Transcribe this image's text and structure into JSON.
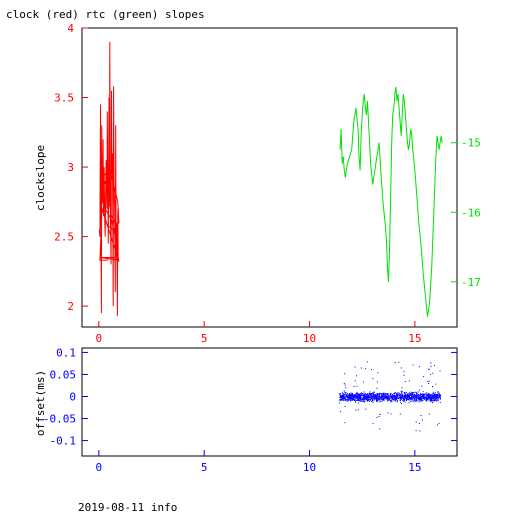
{
  "title": "clock (red) rtc (green) slopes",
  "footer": "2019-08-11 info",
  "colors": {
    "red": "#ff0000",
    "green": "#00e000",
    "blue": "#0000ff",
    "axis": "#000000"
  },
  "chart_data": [
    {
      "type": "line",
      "title": "clock (red) rtc (green) slopes",
      "ylabel": "clockslope",
      "xlim": [
        -0.8,
        17
      ],
      "ylim": [
        1.85,
        4.0
      ],
      "x_ticks": [
        0,
        5,
        10,
        15
      ],
      "y_ticks": [
        2,
        2.5,
        3,
        3.5,
        4
      ],
      "y_tick_labels": [
        "2",
        "2.5",
        "3",
        "3.5",
        "4"
      ],
      "y2lim": [
        -17.65,
        -13.35
      ],
      "y2_ticks": [
        -15,
        -16,
        -17
      ],
      "y2_tick_labels": [
        "-15",
        "-16",
        "-17"
      ],
      "series": [
        {
          "name": "clock",
          "color": "#ff0000",
          "x": [
            0.02,
            0.05,
            0.08,
            0.1,
            0.12,
            0.14,
            0.15,
            0.18,
            0.2,
            0.22,
            0.25,
            0.28,
            0.3,
            0.33,
            0.35,
            0.38,
            0.4,
            0.42,
            0.45,
            0.48,
            0.5,
            0.52,
            0.55,
            0.58,
            0.6,
            0.62,
            0.65,
            0.68,
            0.7,
            0.72,
            0.75,
            0.78,
            0.8,
            0.82,
            0.85,
            0.88,
            0.9,
            0.92,
            0.95,
            0.05,
            0.3,
            0.6,
            0.9,
            0.85,
            0.6,
            0.3,
            0.05,
            0.1,
            0.5,
            0.9,
            0.95,
            0.7,
            0.4,
            0.15,
            0.05,
            0.35,
            0.7,
            0.95,
            0.05,
            0.3,
            0.75,
            0.05
          ],
          "y": [
            2.55,
            2.5,
            3.45,
            2.6,
            1.95,
            3.3,
            2.8,
            2.75,
            3.2,
            2.65,
            3.0,
            2.6,
            2.5,
            2.9,
            3.05,
            2.7,
            3.4,
            2.95,
            2.45,
            3.5,
            2.75,
            3.9,
            2.65,
            2.3,
            3.55,
            2.95,
            3.1,
            2.0,
            3.58,
            2.9,
            2.7,
            2.1,
            3.3,
            2.35,
            2.6,
            1.93,
            2.7,
            2.35,
            2.32,
            2.75,
            2.9,
            2.65,
            2.55,
            2.45,
            2.62,
            2.7,
            2.8,
            2.9,
            3.0,
            2.75,
            2.6,
            2.55,
            2.58,
            2.7,
            2.33,
            2.33,
            2.35,
            2.33,
            2.35,
            2.35,
            2.35,
            2.35
          ]
        },
        {
          "name": "rtc",
          "axis": "y2",
          "color": "#00e000",
          "x": [
            11.45,
            11.5,
            11.55,
            11.6,
            11.65,
            11.7,
            11.8,
            11.9,
            12.0,
            12.05,
            12.1,
            12.2,
            12.3,
            12.35,
            12.4,
            12.45,
            12.5,
            12.55,
            12.6,
            12.65,
            12.7,
            12.75,
            12.8,
            12.85,
            12.9,
            13.0,
            13.1,
            13.2,
            13.3,
            13.4,
            13.5,
            13.6,
            13.65,
            13.7,
            13.75,
            13.8,
            13.85,
            13.9,
            13.95,
            14.0,
            14.05,
            14.1,
            14.15,
            14.2,
            14.25,
            14.3,
            14.35,
            14.4,
            14.45,
            14.5,
            14.55,
            14.6,
            14.65,
            14.7,
            14.75,
            14.8,
            14.85,
            14.9,
            15.0,
            15.1,
            15.2,
            15.3,
            15.4,
            15.5,
            15.6,
            15.7,
            15.8,
            15.9,
            16.0,
            16.05,
            16.1,
            16.15,
            16.2,
            16.25,
            16.3
          ],
          "y": [
            -15.1,
            -14.8,
            -15.3,
            -15.2,
            -15.4,
            -15.5,
            -15.3,
            -15.2,
            -15.1,
            -14.9,
            -14.7,
            -14.5,
            -14.8,
            -15.2,
            -15.4,
            -14.9,
            -14.6,
            -14.4,
            -14.3,
            -14.5,
            -14.6,
            -14.4,
            -14.7,
            -15.0,
            -15.3,
            -15.6,
            -15.4,
            -15.2,
            -15.0,
            -15.5,
            -15.9,
            -16.2,
            -16.4,
            -16.8,
            -17.0,
            -16.5,
            -15.8,
            -15.0,
            -14.6,
            -14.5,
            -14.3,
            -14.2,
            -14.4,
            -14.3,
            -14.5,
            -14.7,
            -14.9,
            -14.6,
            -14.3,
            -14.4,
            -14.6,
            -14.8,
            -15.0,
            -15.1,
            -15.0,
            -14.8,
            -14.9,
            -15.1,
            -15.4,
            -15.8,
            -16.2,
            -16.5,
            -16.9,
            -17.2,
            -17.5,
            -17.3,
            -16.8,
            -16.0,
            -15.2,
            -14.9,
            -15.0,
            -15.1,
            -15.0,
            -14.9,
            -15.0
          ]
        }
      ]
    },
    {
      "type": "scatter",
      "ylabel": "offset(ms)",
      "xlim": [
        -0.8,
        17
      ],
      "ylim": [
        -0.135,
        0.11
      ],
      "x_ticks": [
        0,
        5,
        10,
        15
      ],
      "y_ticks": [
        0.1,
        0.05,
        0,
        -0.05,
        -0.1
      ],
      "y_tick_labels": [
        "0.1",
        "0.05",
        "0",
        "-0.05",
        "-0.1"
      ],
      "series": [
        {
          "name": "offset",
          "color": "#0000ff",
          "x_range": [
            11.4,
            16.2
          ],
          "typical_spread": 0.01,
          "max_abs": 0.08
        }
      ]
    }
  ]
}
